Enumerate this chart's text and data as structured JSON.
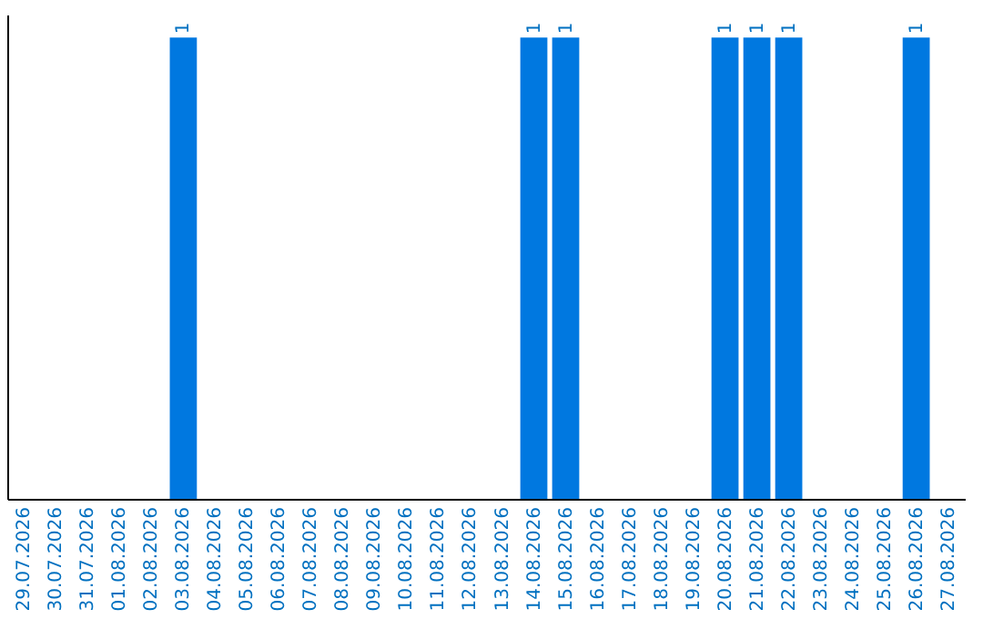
{
  "chart_data": {
    "type": "bar",
    "tick_labels": "x",
    "color": "#0078e0",
    "categories": [
      "29.07.2026",
      "30.07.2026",
      "31.07.2026",
      "01.08.2026",
      "02.08.2026",
      "03.08.2026",
      "04.08.2026",
      "05.08.2026",
      "06.08.2026",
      "07.08.2026",
      "08.08.2026",
      "09.08.2026",
      "10.08.2026",
      "11.08.2026",
      "12.08.2026",
      "13.08.2026",
      "14.08.2026",
      "15.08.2026",
      "16.08.2026",
      "17.08.2026",
      "18.08.2026",
      "19.08.2026",
      "20.08.2026",
      "21.08.2026",
      "22.08.2026",
      "23.08.2026",
      "24.08.2026",
      "25.08.2026",
      "26.08.2026",
      "27.08.2026"
    ],
    "values": [
      0,
      0,
      0,
      0,
      0,
      1,
      0,
      0,
      0,
      0,
      0,
      0,
      0,
      0,
      0,
      0,
      1,
      1,
      0,
      0,
      0,
      0,
      1,
      1,
      1,
      0,
      0,
      0,
      1,
      0
    ],
    "value_labels": [
      null,
      null,
      null,
      null,
      null,
      "1",
      null,
      null,
      null,
      null,
      null,
      null,
      null,
      null,
      null,
      null,
      "1",
      "1",
      null,
      null,
      null,
      null,
      "1",
      "1",
      "1",
      null,
      null,
      null,
      "1",
      null
    ]
  }
}
